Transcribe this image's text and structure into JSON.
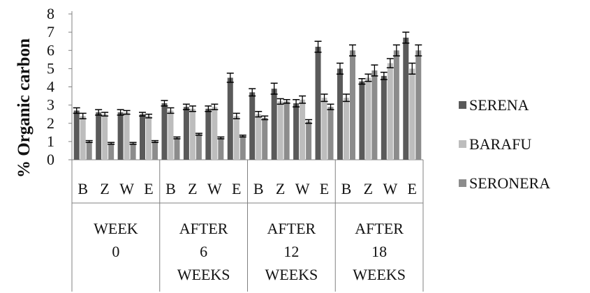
{
  "chart_data": {
    "type": "bar",
    "title": "",
    "xlabel": "",
    "ylabel": "% Organic carbon",
    "ylim": [
      0,
      8
    ],
    "yticks": [
      0,
      1,
      2,
      3,
      4,
      5,
      6,
      7,
      8
    ],
    "grid": false,
    "legend_position": "right",
    "error_bars": true,
    "groups": [
      {
        "label_lines": [
          "WEEK",
          "0"
        ],
        "categories": [
          "B",
          "Z",
          "W",
          "E"
        ]
      },
      {
        "label_lines": [
          "AFTER",
          "6",
          "WEEKS"
        ],
        "categories": [
          "B",
          "Z",
          "W",
          "E"
        ]
      },
      {
        "label_lines": [
          "AFTER",
          "12",
          "WEEKS"
        ],
        "categories": [
          "B",
          "Z",
          "W",
          "E"
        ]
      },
      {
        "label_lines": [
          "AFTER",
          "18",
          "WEEKS"
        ],
        "categories": [
          "B",
          "Z",
          "W",
          "E"
        ]
      }
    ],
    "series": [
      {
        "name": "SERENA",
        "color": "#5a5a5a",
        "values": [
          2.7,
          2.6,
          2.6,
          2.5,
          3.1,
          2.9,
          2.8,
          4.5,
          3.7,
          3.9,
          3.1,
          6.2,
          5.0,
          4.3,
          4.6,
          6.7
        ],
        "errors": [
          0.15,
          0.15,
          0.15,
          0.1,
          0.15,
          0.15,
          0.15,
          0.25,
          0.2,
          0.3,
          0.2,
          0.3,
          0.3,
          0.15,
          0.2,
          0.3
        ]
      },
      {
        "name": "BARAFU",
        "color": "#bdbdbd",
        "values": [
          2.4,
          2.5,
          2.6,
          2.4,
          2.7,
          2.8,
          2.9,
          2.4,
          2.5,
          3.2,
          3.3,
          3.4,
          3.4,
          4.5,
          5.3,
          5.0
        ],
        "errors": [
          0.15,
          0.1,
          0.1,
          0.1,
          0.15,
          0.15,
          0.15,
          0.15,
          0.15,
          0.15,
          0.2,
          0.2,
          0.2,
          0.2,
          0.25,
          0.3
        ]
      },
      {
        "name": "SERONERA",
        "color": "#8c8c8c",
        "values": [
          1.0,
          0.9,
          0.9,
          1.0,
          1.2,
          1.4,
          1.2,
          1.3,
          2.3,
          3.2,
          2.1,
          2.9,
          6.0,
          4.9,
          6.0,
          6.0
        ],
        "errors": [
          0.05,
          0.05,
          0.05,
          0.05,
          0.05,
          0.05,
          0.05,
          0.05,
          0.1,
          0.1,
          0.1,
          0.15,
          0.3,
          0.3,
          0.3,
          0.3
        ]
      }
    ]
  }
}
